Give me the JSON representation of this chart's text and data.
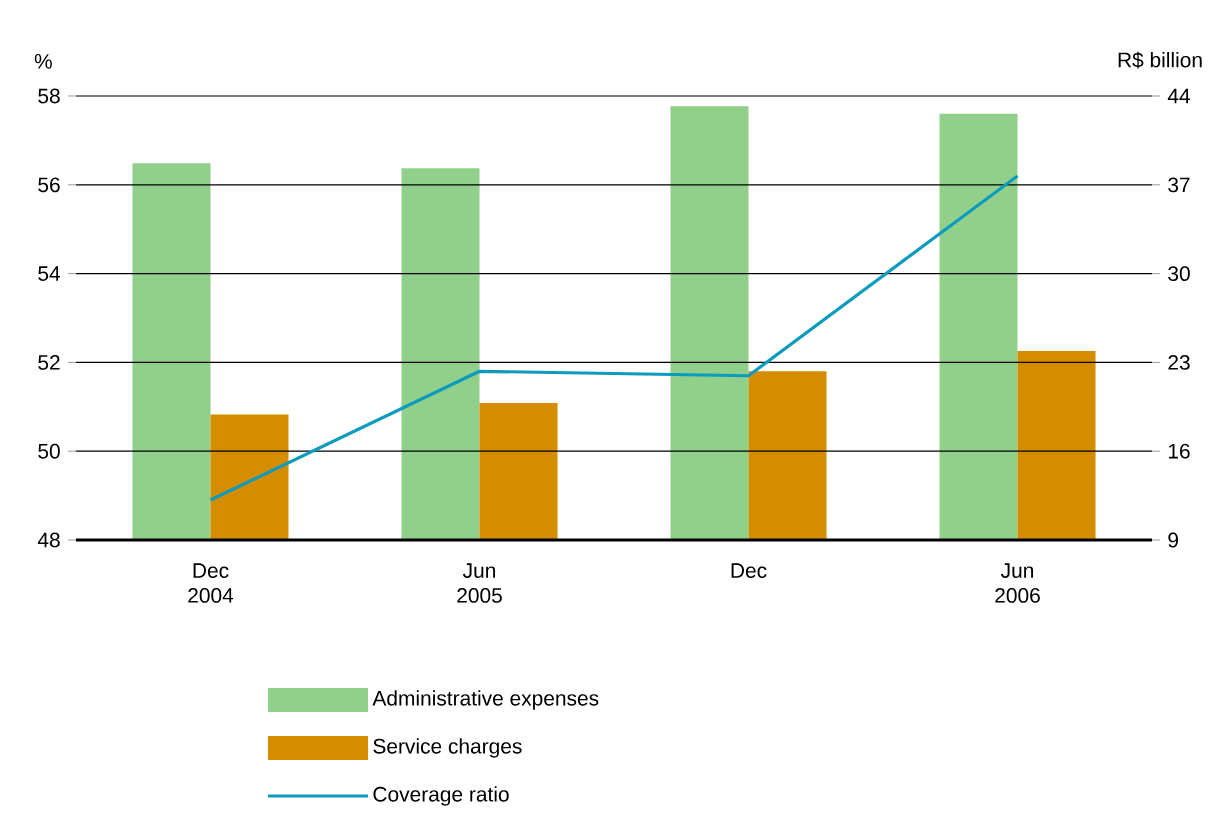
{
  "chart_data": {
    "type": "bar",
    "ylabel": "%",
    "y2label": "R$ billion",
    "categories": [
      "Dec 2004",
      "Jun 2005",
      "Dec",
      "Jun 2006"
    ],
    "series": [
      {
        "name": "Administrative expenses",
        "color": "#90d08a",
        "axis": "y2",
        "values": [
          38.7,
          38.3,
          43.2,
          42.6
        ]
      },
      {
        "name": "Service charges",
        "color": "#d58d00",
        "axis": "y2",
        "values": [
          18.9,
          19.8,
          22.3,
          23.9
        ]
      },
      {
        "name": "Coverage ratio",
        "type": "line",
        "color": "#0a9bbd",
        "values": [
          48.9,
          51.8,
          51.7,
          56.2
        ]
      }
    ],
    "ylim": [
      48,
      58
    ],
    "yticks": [
      48,
      50,
      52,
      54,
      56,
      58
    ],
    "y2lim": [
      9,
      44
    ],
    "y2ticks": [
      9,
      16,
      23,
      30,
      37,
      44
    ],
    "grid": "y",
    "legend": "bottom"
  }
}
